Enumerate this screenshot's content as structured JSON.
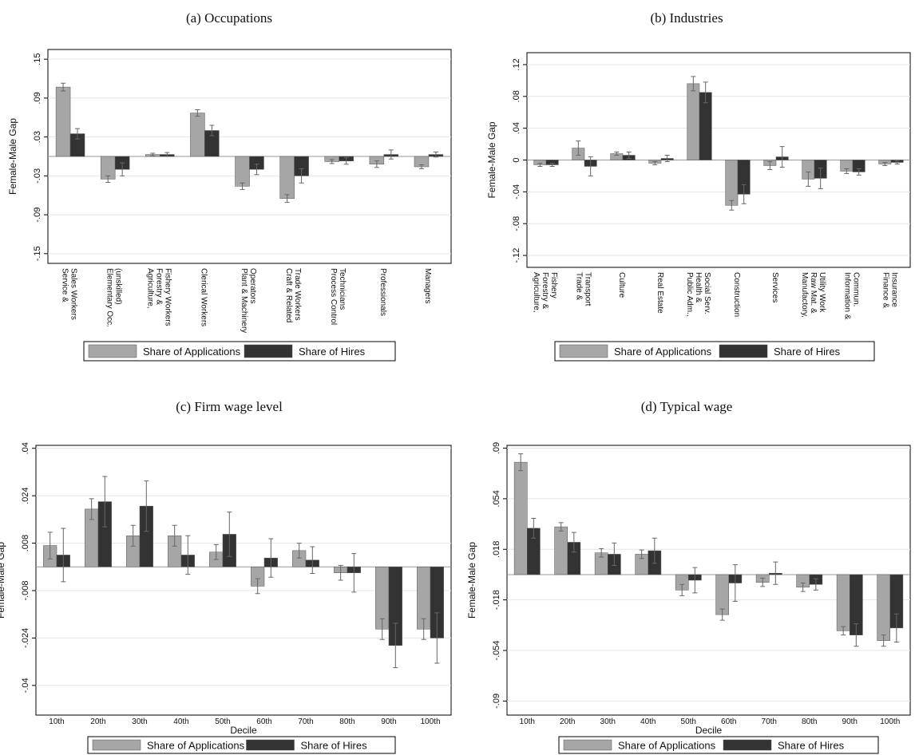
{
  "chart_data": [
    {
      "type": "bar",
      "title": "(a) Occupations",
      "y_label": "Female-Male Gap",
      "categories": [
        "Service &\nSales Workers",
        "Elementary Occ.\n(unskilled)",
        "Agriculture,\nForestry &\nFishery Workers",
        "Clerical Workers",
        "Plant & Machinery\nOperators",
        "Craft & Related\nTrade Workers",
        "Process Control\nTechnicians",
        "Professionals",
        "Managers"
      ],
      "series": [
        {
          "name": "Share of Applications",
          "color": "#a6a6a6",
          "values": [
            0.107,
            -0.035,
            0.003,
            0.067,
            -0.046,
            -0.065,
            -0.008,
            -0.012,
            -0.016
          ],
          "errors": [
            0.006,
            0.005,
            0.002,
            0.005,
            0.005,
            0.006,
            0.003,
            0.005,
            0.003
          ]
        },
        {
          "name": "Share of Hires",
          "color": "#333333",
          "values": [
            0.035,
            -0.02,
            0.003,
            0.04,
            -0.02,
            -0.03,
            -0.007,
            0.003,
            0.003
          ],
          "errors": [
            0.008,
            0.01,
            0.003,
            0.008,
            0.008,
            0.011,
            0.005,
            0.007,
            0.004
          ]
        }
      ],
      "ylim": [
        -0.165,
        0.165
      ],
      "yticks": [
        {
          "value": -0.15,
          "label": "-.15"
        },
        {
          "value": -0.09,
          "label": "-.09"
        },
        {
          "value": -0.03,
          "label": "-.03"
        },
        {
          "value": 0.03,
          "label": ".03"
        },
        {
          "value": 0.09,
          "label": ".09"
        },
        {
          "value": 0.15,
          "label": ".15"
        }
      ],
      "grid": true
    },
    {
      "type": "bar",
      "title": "(b) Industries",
      "y_label": "Female-Male Gap",
      "categories": [
        "Agriculture,\nForestry &\nFishery",
        "Trade &\nTransport",
        "Culture",
        "Real Estate",
        "Public Adm.,\nHealth &\nSocial Serv.",
        "Construction",
        "Services",
        "Manufactory,\nRaw Mat. &\nUtility Work",
        "Information &\nCommun.",
        "Finance &\nInsurance"
      ],
      "series": [
        {
          "name": "Share of Applications",
          "color": "#a6a6a6",
          "values": [
            -0.006,
            0.015,
            0.008,
            -0.004,
            0.096,
            -0.057,
            -0.007,
            -0.024,
            -0.014,
            -0.005
          ],
          "errors": [
            0.002,
            0.009,
            0.002,
            0.002,
            0.009,
            0.006,
            0.005,
            0.009,
            0.003,
            0.002
          ]
        },
        {
          "name": "Share of Hires",
          "color": "#333333",
          "values": [
            -0.006,
            -0.008,
            0.006,
            0.002,
            0.085,
            -0.043,
            0.004,
            -0.023,
            -0.015,
            -0.003
          ],
          "errors": [
            0.002,
            0.012,
            0.004,
            0.004,
            0.013,
            0.012,
            0.013,
            0.013,
            0.004,
            0.002
          ]
        }
      ],
      "ylim": [
        -0.135,
        0.135
      ],
      "yticks": [
        {
          "value": -0.12,
          "label": "-.12"
        },
        {
          "value": -0.08,
          "label": "-.08"
        },
        {
          "value": -0.04,
          "label": "-.04"
        },
        0,
        {
          "value": 0.04,
          "label": ".04"
        },
        {
          "value": 0.08,
          "label": ".08"
        },
        {
          "value": 0.12,
          "label": ".12"
        }
      ],
      "grid": true
    },
    {
      "type": "bar",
      "title": "(c) Firm wage level",
      "y_label": "Female-Male Gap",
      "x_label": "Decile",
      "categories": [
        "10th",
        "20th",
        "30th",
        "40th",
        "50th",
        "60th",
        "70th",
        "80th",
        "90th",
        "100th"
      ],
      "series": [
        {
          "name": "Share of Applications",
          "color": "#a6a6a6",
          "values": [
            0.0072,
            0.0195,
            0.0105,
            0.0105,
            0.005,
            -0.0065,
            0.0055,
            -0.002,
            -0.021,
            -0.021
          ],
          "errors": [
            0.0045,
            0.0035,
            0.0035,
            0.0035,
            0.0025,
            0.0025,
            0.0025,
            0.0025,
            0.0035,
            0.0035
          ]
        },
        {
          "name": "Share of Hires",
          "color": "#333333",
          "values": [
            0.004,
            0.022,
            0.0205,
            0.004,
            0.011,
            0.003,
            0.0023,
            -0.002,
            -0.0265,
            -0.024
          ],
          "errors": [
            0.009,
            0.0085,
            0.0085,
            0.0065,
            0.0075,
            0.0065,
            0.0045,
            0.0065,
            0.0075,
            0.0085
          ]
        }
      ],
      "ylim": [
        -0.05,
        0.041
      ],
      "yticks": [
        {
          "value": -0.04,
          "label": "-.04"
        },
        {
          "value": -0.024,
          "label": "-.024"
        },
        {
          "value": -0.008,
          "label": "-.008"
        },
        {
          "value": 0.008,
          "label": ".008"
        },
        {
          "value": 0.024,
          "label": ".024"
        },
        {
          "value": 0.04,
          "label": ".04"
        }
      ],
      "grid": true
    },
    {
      "type": "bar",
      "title": "(d) Typical wage",
      "y_label": "Female-Male Gap",
      "x_label": "Decile",
      "categories": [
        "10th",
        "20th",
        "30th",
        "40th",
        "50th",
        "60th",
        "70th",
        "80th",
        "90th",
        "100th"
      ],
      "series": [
        {
          "name": "Share of Applications",
          "color": "#a6a6a6",
          "values": [
            0.08,
            0.034,
            0.0155,
            0.0145,
            -0.011,
            -0.0285,
            -0.0055,
            -0.009,
            -0.04,
            -0.047
          ],
          "errors": [
            0.006,
            0.003,
            0.003,
            0.003,
            0.004,
            0.004,
            0.003,
            0.003,
            0.003,
            0.004
          ]
        },
        {
          "name": "Share of Hires",
          "color": "#333333",
          "values": [
            0.033,
            0.023,
            0.0145,
            0.017,
            -0.004,
            -0.006,
            0.001,
            -0.007,
            -0.043,
            -0.038
          ],
          "errors": [
            0.007,
            0.007,
            0.008,
            0.009,
            0.009,
            0.013,
            0.008,
            0.004,
            0.008,
            0.01
          ]
        }
      ],
      "ylim": [
        -0.1,
        0.092
      ],
      "yticks": [
        {
          "value": -0.09,
          "label": "-.09"
        },
        {
          "value": -0.054,
          "label": "-.054"
        },
        {
          "value": -0.018,
          "label": "-.018"
        },
        {
          "value": 0.018,
          "label": ".018"
        },
        {
          "value": 0.054,
          "label": ".054"
        },
        {
          "value": 0.09,
          "label": ".09"
        }
      ],
      "grid": true
    }
  ]
}
